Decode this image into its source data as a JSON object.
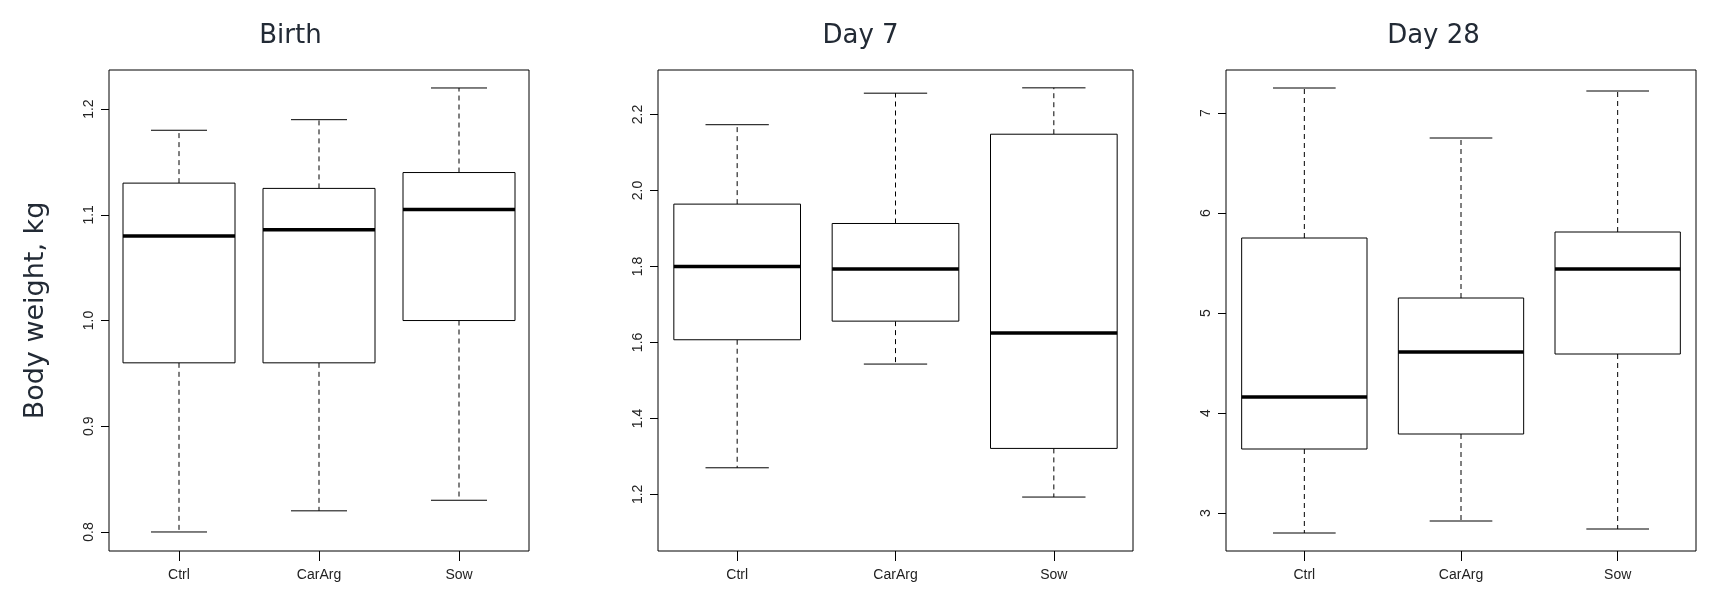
{
  "chart_data": [
    {
      "type": "box",
      "title": "Birth",
      "ylabel": "Body weight, kg",
      "categories": [
        "Ctrl",
        "CarArg",
        "Sow"
      ],
      "boxes": [
        {
          "low": 0.8,
          "q1": 0.96,
          "median": 1.08,
          "q3": 1.13,
          "high": 1.18
        },
        {
          "low": 0.82,
          "q1": 0.96,
          "median": 1.086,
          "q3": 1.125,
          "high": 1.19
        },
        {
          "low": 0.83,
          "q1": 1.0,
          "median": 1.105,
          "q3": 1.14,
          "high": 1.22
        }
      ],
      "ylim": [
        0.782,
        1.237
      ],
      "yticks": [
        0.8,
        0.9,
        {
          "value": 1,
          "label": "1.0"
        },
        1.1,
        1.2
      ]
    },
    {
      "type": "box",
      "title": "Day 7",
      "categories": [
        "Ctrl",
        "CarArg",
        "Sow"
      ],
      "boxes": [
        {
          "low": 1.27,
          "q1": 1.607,
          "median": 1.8,
          "q3": 1.964,
          "high": 2.173
        },
        {
          "low": 1.543,
          "q1": 1.656,
          "median": 1.793,
          "q3": 1.913,
          "high": 2.256
        },
        {
          "low": 1.193,
          "q1": 1.321,
          "median": 1.625,
          "q3": 2.148,
          "high": 2.27
        }
      ],
      "ylim": [
        1.051,
        2.317
      ],
      "yticks": [
        1.2,
        1.4,
        1.6,
        1.8,
        {
          "value": 2,
          "label": "2.0"
        },
        2.2
      ]
    },
    {
      "type": "box",
      "title": "Day 28",
      "categories": [
        "Ctrl",
        "CarArg",
        "Sow"
      ],
      "boxes": [
        {
          "low": 2.8,
          "q1": 3.64,
          "median": 4.16,
          "q3": 5.75,
          "high": 7.25
        },
        {
          "low": 2.92,
          "q1": 3.79,
          "median": 4.61,
          "q3": 5.15,
          "high": 6.75
        },
        {
          "low": 2.84,
          "q1": 4.59,
          "median": 5.44,
          "q3": 5.81,
          "high": 7.22
        }
      ],
      "ylim": [
        2.62,
        7.43
      ],
      "yticks": [
        3,
        4,
        5,
        6,
        7
      ]
    }
  ]
}
